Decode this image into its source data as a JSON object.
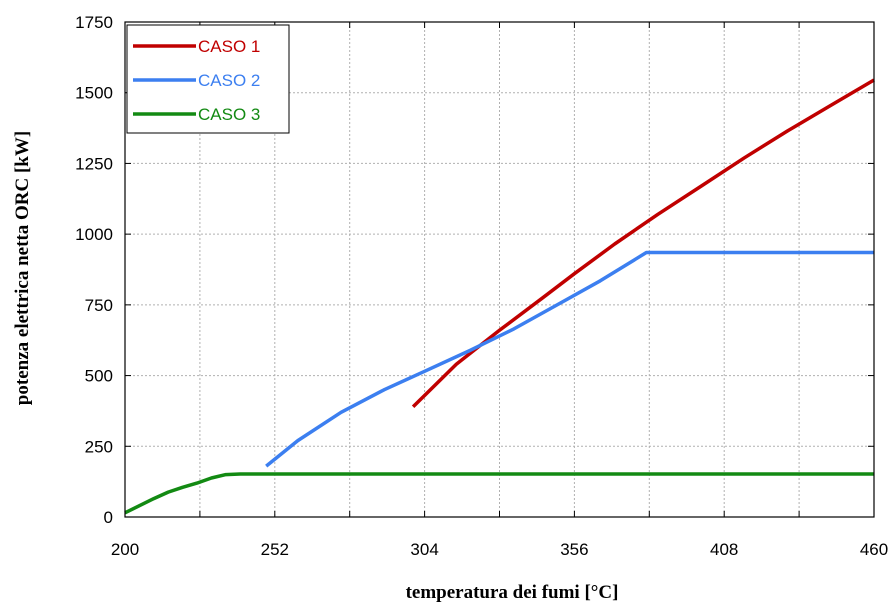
{
  "chart_data": {
    "type": "line",
    "xlabel": "temperatura dei fumi [°C]",
    "ylabel": "potenza elettrica netta ORC [kW]",
    "xlim": [
      200,
      460
    ],
    "ylim": [
      0,
      1750
    ],
    "xticks": [
      200,
      252,
      304,
      356,
      408,
      460
    ],
    "yticks": [
      0,
      250,
      500,
      750,
      1000,
      1250,
      1500,
      1750
    ],
    "grid": true,
    "legend_position": "top-left",
    "series": [
      {
        "name": "CASO 1",
        "color": "#c00000",
        "x": [
          300,
          315,
          330,
          345,
          356,
          370,
          385,
          400,
          415,
          430,
          445,
          460
        ],
        "y": [
          390,
          540,
          660,
          775,
          860,
          965,
          1070,
          1170,
          1270,
          1365,
          1455,
          1545
        ]
      },
      {
        "name": "CASO 2",
        "color": "#3c7ff0",
        "x": [
          249,
          260,
          275,
          290,
          304,
          320,
          335,
          350,
          365,
          381,
          400,
          430,
          460
        ],
        "y": [
          180,
          270,
          370,
          450,
          515,
          590,
          665,
          750,
          835,
          935,
          935,
          935,
          935
        ]
      },
      {
        "name": "CASO 3",
        "color": "#138a13",
        "x": [
          200,
          205,
          210,
          215,
          220,
          225,
          230,
          235,
          240,
          300,
          400,
          460
        ],
        "y": [
          15,
          40,
          65,
          88,
          105,
          120,
          138,
          150,
          152,
          152,
          152,
          152
        ]
      }
    ]
  }
}
